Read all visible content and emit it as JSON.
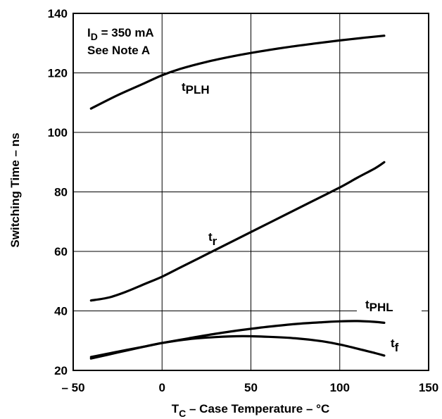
{
  "chart_data": {
    "type": "line",
    "title": "",
    "xlabel": {
      "main": "T",
      "sub": "C",
      "rest": " – Case Temperature – °C"
    },
    "ylabel": "Switching Time – ns",
    "xlim": [
      -50,
      150
    ],
    "ylim": [
      20,
      140
    ],
    "xticks": [
      -50,
      0,
      50,
      100,
      150
    ],
    "xtick_labels": [
      "– 50",
      "0",
      "50",
      "100",
      "150"
    ],
    "yticks": [
      20,
      40,
      60,
      80,
      100,
      120,
      140
    ],
    "ytick_labels": [
      "20",
      "40",
      "60",
      "80",
      "100",
      "120",
      "140"
    ],
    "grid": true,
    "annotation": {
      "line1": {
        "main": "I",
        "sub": "D",
        "rest": " = 350 mA"
      },
      "line2": "See Note A"
    },
    "series": [
      {
        "label": {
          "main": "t",
          "sub": "PLH"
        },
        "x": [
          -40,
          -25,
          -10,
          0,
          10,
          25,
          40,
          55,
          70,
          85,
          100,
          115,
          125
        ],
        "y": [
          108,
          112.5,
          116.5,
          119.2,
          121.3,
          123.7,
          125.6,
          127.2,
          128.6,
          129.8,
          130.9,
          131.9,
          132.5
        ]
      },
      {
        "label": {
          "main": "t",
          "sub": "r"
        },
        "x": [
          -40,
          -30,
          -20,
          -10,
          0,
          10,
          25,
          40,
          55,
          70,
          85,
          100,
          110,
          120,
          125
        ],
        "y": [
          43.5,
          44.5,
          46.5,
          49,
          51.5,
          54.5,
          59,
          63.5,
          68,
          72.5,
          77,
          81.5,
          84.8,
          88,
          90
        ]
      },
      {
        "label": {
          "main": "t",
          "sub": "PHL"
        },
        "x": [
          -40,
          -25,
          -10,
          0,
          15,
          30,
          45,
          60,
          75,
          90,
          100,
          110,
          120,
          125
        ],
        "y": [
          24.5,
          26.3,
          28,
          29.2,
          30.8,
          32.3,
          33.6,
          34.7,
          35.6,
          36.2,
          36.5,
          36.6,
          36.3,
          36
        ],
        "label_text_y": 41
      },
      {
        "label": {
          "main": "t",
          "sub": "f"
        },
        "x": [
          -40,
          -25,
          -10,
          0,
          15,
          30,
          45,
          60,
          75,
          90,
          100,
          110,
          120,
          125
        ],
        "y": [
          24,
          26,
          28,
          29.2,
          30.5,
          31.2,
          31.5,
          31.3,
          30.8,
          29.8,
          28.7,
          27.3,
          25.8,
          25
        ]
      }
    ]
  }
}
